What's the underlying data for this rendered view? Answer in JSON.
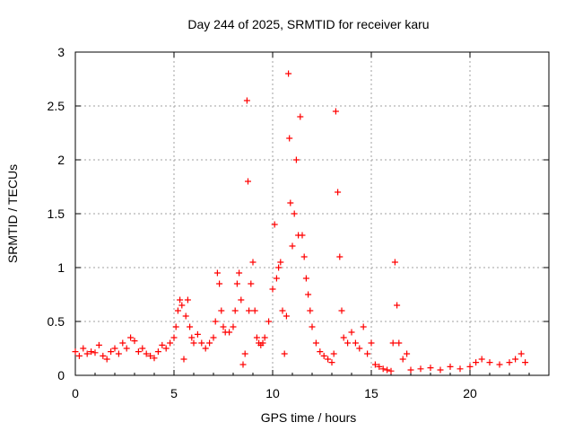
{
  "chart_data": {
    "type": "scatter",
    "title": "Day 244 of 2025, SRMTID for receiver karu",
    "xlabel": "GPS time / hours",
    "ylabel": "SRMTID / TECUs",
    "xlim": [
      0,
      24
    ],
    "ylim": [
      0,
      3
    ],
    "x_ticks": [
      0,
      5,
      10,
      15,
      20
    ],
    "x_tick_labels": [
      "0",
      "5",
      "10",
      "15",
      "20"
    ],
    "y_ticks": [
      0,
      0.5,
      1,
      1.5,
      2,
      2.5,
      3
    ],
    "y_tick_labels": [
      "0",
      "0.5",
      "1",
      "1.5",
      "2",
      "2.5",
      "3"
    ],
    "grid": true,
    "marker": "+",
    "colors": {
      "series": "#ff0000",
      "grid": "#a0a0a0",
      "axis": "#000000"
    },
    "series": [
      {
        "name": "SRMTID",
        "x": [
          0.0,
          0.2,
          0.4,
          0.6,
          0.8,
          1.0,
          1.2,
          1.4,
          1.6,
          1.8,
          2.0,
          2.2,
          2.4,
          2.6,
          2.8,
          3.0,
          3.2,
          3.4,
          3.6,
          3.8,
          4.0,
          4.2,
          4.4,
          4.6,
          4.8,
          5.0,
          5.1,
          5.2,
          5.3,
          5.4,
          5.5,
          5.6,
          5.7,
          5.8,
          5.9,
          6.0,
          6.2,
          6.4,
          6.6,
          6.8,
          7.0,
          7.1,
          7.2,
          7.3,
          7.4,
          7.5,
          7.6,
          7.8,
          8.0,
          8.1,
          8.2,
          8.3,
          8.4,
          8.5,
          8.6,
          8.7,
          8.75,
          8.8,
          8.9,
          9.0,
          9.1,
          9.2,
          9.3,
          9.4,
          9.5,
          9.6,
          9.8,
          10.0,
          10.1,
          10.2,
          10.3,
          10.4,
          10.5,
          10.6,
          10.7,
          10.8,
          10.85,
          10.9,
          11.0,
          11.1,
          11.2,
          11.3,
          11.4,
          11.5,
          11.6,
          11.7,
          11.8,
          11.9,
          12.0,
          12.2,
          12.4,
          12.6,
          12.8,
          13.0,
          13.1,
          13.2,
          13.3,
          13.4,
          13.5,
          13.6,
          13.8,
          14.0,
          14.2,
          14.4,
          14.6,
          14.8,
          15.0,
          15.2,
          15.4,
          15.6,
          15.8,
          16.0,
          16.1,
          16.2,
          16.3,
          16.4,
          16.6,
          16.8,
          17.0,
          17.5,
          18.0,
          18.5,
          19.0,
          19.5,
          20.0,
          20.3,
          20.6,
          21.0,
          21.5,
          22.0,
          22.3,
          22.6,
          22.8
        ],
        "y": [
          0.22,
          0.18,
          0.25,
          0.2,
          0.22,
          0.21,
          0.28,
          0.18,
          0.15,
          0.22,
          0.25,
          0.2,
          0.3,
          0.25,
          0.35,
          0.32,
          0.22,
          0.25,
          0.2,
          0.18,
          0.16,
          0.22,
          0.28,
          0.25,
          0.3,
          0.35,
          0.45,
          0.6,
          0.7,
          0.65,
          0.15,
          0.55,
          0.7,
          0.45,
          0.35,
          0.3,
          0.38,
          0.3,
          0.25,
          0.3,
          0.35,
          0.5,
          0.95,
          0.85,
          0.6,
          0.45,
          0.4,
          0.4,
          0.45,
          0.6,
          0.85,
          0.95,
          0.7,
          0.1,
          0.2,
          2.55,
          1.8,
          0.6,
          0.85,
          1.05,
          0.6,
          0.35,
          0.3,
          0.28,
          0.3,
          0.35,
          0.5,
          0.8,
          1.4,
          0.9,
          1.0,
          1.05,
          0.6,
          0.2,
          0.55,
          2.8,
          2.2,
          1.6,
          1.2,
          1.5,
          2.0,
          1.3,
          2.4,
          1.3,
          1.1,
          0.9,
          0.75,
          0.6,
          0.45,
          0.3,
          0.22,
          0.18,
          0.15,
          0.12,
          0.2,
          2.45,
          1.7,
          1.1,
          0.6,
          0.35,
          0.3,
          0.4,
          0.3,
          0.25,
          0.45,
          0.2,
          0.3,
          0.1,
          0.08,
          0.06,
          0.05,
          0.04,
          0.3,
          1.05,
          0.65,
          0.3,
          0.15,
          0.2,
          0.05,
          0.06,
          0.07,
          0.05,
          0.08,
          0.06,
          0.08,
          0.12,
          0.15,
          0.12,
          0.1,
          0.12,
          0.15,
          0.2,
          0.12
        ]
      }
    ]
  }
}
